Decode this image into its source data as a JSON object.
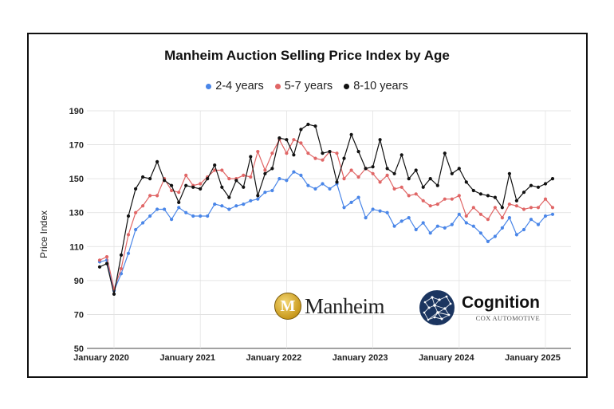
{
  "chart_data": {
    "type": "line",
    "title": "Manheim Auction Selling Price Index by Age",
    "xlabel": "",
    "ylabel": "Price Index",
    "ylim": [
      50,
      190
    ],
    "yticks": [
      50,
      70,
      90,
      110,
      130,
      150,
      170,
      190
    ],
    "xtick_labels": [
      "January 2020",
      "January 2021",
      "January 2022",
      "January 2023",
      "January 2024",
      "January 2025"
    ],
    "xtick_months": [
      0,
      12,
      24,
      36,
      48,
      60
    ],
    "x_months": [
      -2,
      -1,
      0,
      1,
      2,
      3,
      4,
      5,
      6,
      7,
      8,
      9,
      10,
      11,
      12,
      13,
      14,
      15,
      16,
      17,
      18,
      19,
      20,
      21,
      22,
      23,
      24,
      25,
      26,
      27,
      28,
      29,
      30,
      31,
      32,
      33,
      34,
      35,
      36,
      37,
      38,
      39,
      40,
      41,
      42,
      43,
      44,
      45,
      46,
      47,
      48,
      49,
      50,
      51,
      52,
      53,
      54,
      55,
      56,
      57,
      58,
      59,
      60,
      61,
      62,
      63,
      64,
      65,
      66
    ],
    "grid": true,
    "series": [
      {
        "name": "2-4 years",
        "color": "#4a86e8",
        "values": [
          101,
          102,
          84,
          94,
          106,
          120,
          124,
          128,
          132,
          132,
          126,
          133,
          130,
          128,
          128,
          128,
          135,
          134,
          132,
          134,
          135,
          137,
          138,
          142,
          143,
          150,
          149,
          154,
          152,
          146,
          144,
          147,
          144,
          147,
          133,
          136,
          139,
          127,
          132,
          131,
          130,
          122,
          125,
          127,
          120,
          124,
          118,
          122,
          121,
          123,
          129,
          124,
          122,
          118,
          113,
          116,
          121,
          127,
          117,
          120,
          126,
          123,
          128,
          129
        ]
      },
      {
        "name": "5-7 years",
        "color": "#e06666",
        "values": [
          102,
          104,
          85,
          97,
          117,
          130,
          134,
          140,
          140,
          150,
          143,
          142,
          152,
          146,
          147,
          151,
          155,
          155,
          150,
          150,
          152,
          151,
          166,
          155,
          165,
          173,
          165,
          173,
          171,
          165,
          162,
          161,
          166,
          165,
          150,
          155,
          151,
          156,
          153,
          148,
          152,
          144,
          145,
          140,
          141,
          137,
          134,
          135,
          138,
          138,
          140,
          128,
          133,
          129,
          126,
          133,
          127,
          135,
          134,
          132,
          133,
          133,
          138,
          133
        ]
      },
      {
        "name": "8-10 years",
        "color": "#111111",
        "values": [
          98,
          100,
          82,
          105,
          128,
          144,
          151,
          150,
          160,
          149,
          146,
          136,
          146,
          145,
          144,
          150,
          158,
          145,
          139,
          149,
          145,
          163,
          140,
          153,
          156,
          174,
          173,
          164,
          179,
          182,
          181,
          165,
          166,
          148,
          162,
          176,
          166,
          156,
          157,
          173,
          156,
          153,
          164,
          150,
          155,
          145,
          150,
          146,
          165,
          153,
          156,
          148,
          143,
          141,
          140,
          139,
          133,
          153,
          137,
          142,
          146,
          145,
          147,
          150
        ]
      }
    ],
    "series_x_start": [
      0,
      0,
      0
    ]
  },
  "logos": {
    "manheim_text": "Manheim",
    "manheim_letter": "M",
    "cognition_text": "Cognition",
    "cognition_sub": "COX AUTOMOTIVE"
  }
}
